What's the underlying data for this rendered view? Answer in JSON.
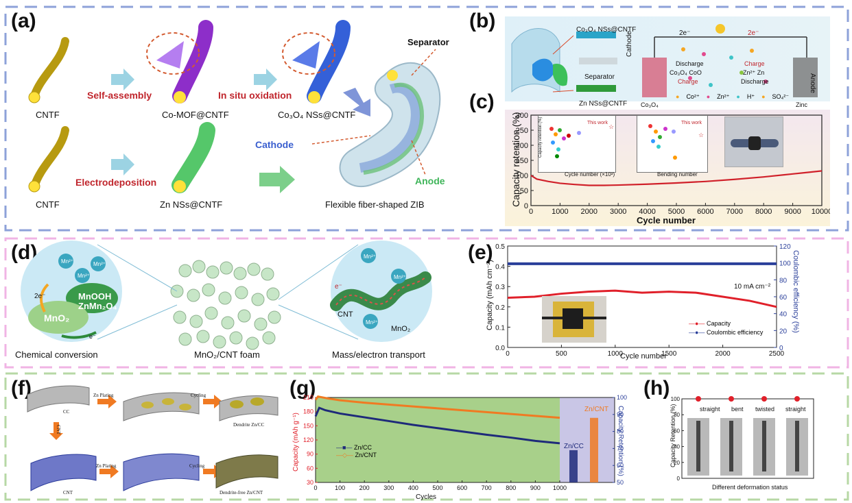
{
  "panels": {
    "a": {
      "label": "(a)",
      "cntf1": "CNTF",
      "cntf2": "CNTF",
      "step_self_assembly": "Self-assembly",
      "step_in_situ": "In situ oxidation",
      "step_electrodep": "Electrodeposition",
      "comof": "Co-MOF@CNTF",
      "co3o4": "Co₃O₄ NSs@CNTF",
      "zn": "Zn NSs@CNTF",
      "separator": "Separator",
      "cathode": "Cathode",
      "anode": "Anode",
      "zib": "Flexible fiber-shaped ZIB"
    },
    "b": {
      "label": "(b)",
      "co3o4_cntf": "Co₃O₄ NSs@CNTF",
      "separator": "Separator",
      "zn_cntf": "Zn NSs@CNTF",
      "cathode": "Cathode",
      "anode": "Anode",
      "e_left": "2e⁻",
      "e_right": "2e⁻",
      "discharge1": "Discharge",
      "charge1": "Charge",
      "co3o4_coo": "Co₃O₄  CoO",
      "charge2": "Charge",
      "discharge2": "Discharge",
      "zn2zn": "Zn²⁺  Zn",
      "co3o4_label": "Co₃O₄",
      "zinc_label": "Zinc",
      "legend": [
        "Co²⁺",
        "Zn²⁺",
        "H⁺",
        "SO₄²⁻"
      ]
    },
    "c": {
      "label": "(c)",
      "ylabel": "Capacity retention (%)",
      "xlabel": "Cycle number",
      "inset1_ylabel": "Capacity retention (%)",
      "inset1_xlabel": "Cycle number (×10³)",
      "inset1_note": "This work",
      "inset2_xlabel": "Bending number",
      "inset2_note": "This work"
    },
    "d": {
      "label": "(d)",
      "mn_ions": [
        "Mn²⁺",
        "Mn²⁺",
        "Mn²⁺"
      ],
      "e2": "2e⁻",
      "mnooh": "MnOOH",
      "znmn2o4": "ZnMn₂O₄",
      "mno2_left": "MnO₂",
      "e1": "e⁻",
      "chem_conv": "Chemical conversion",
      "foam": "MnO₂/CNT foam",
      "mass": "Mass/electron transport",
      "cnt": "CNT",
      "mno2_right": "MnO₂",
      "e_right": "e⁻",
      "mn_right": [
        "Mn²⁺",
        "Mn²⁺",
        "Mn²⁺"
      ]
    },
    "e": {
      "label": "(e)",
      "ylabel": "Capacity (mAh cm⁻²)",
      "y2label": "Coulombic efficiency (%)",
      "xlabel": "Cycle number",
      "current": "10 mA cm⁻²",
      "legend": [
        "Capacity",
        "Coulombic efficiency"
      ]
    },
    "f": {
      "label": "(f)",
      "cc": "CC",
      "zn_plating1": "Zn Plating",
      "cycling1": "Cycling",
      "dendrite": "Dendrite Zn/CC",
      "cnt_arrow": "CNT",
      "cnt": "CNT",
      "zn_plating2": "Zn Plating",
      "cycling2": "Cycling",
      "dendrite_free": "Dendrite-free Zn/CNT"
    },
    "g": {
      "label": "(g)",
      "ylabel": "Capacity (mAh g⁻¹)",
      "y2label": "Capacity Retention (%)",
      "xlabel": "Cycles",
      "legend": [
        "Zn/CC",
        "Zn/CNT"
      ],
      "bar_labels": [
        "Zn/CC",
        "Zn/CNT"
      ]
    },
    "h": {
      "label": "(h)",
      "ylabel": "Capacity Retention (%)",
      "xlabel": "Different deformation status",
      "states": [
        "straight",
        "bent",
        "twisted",
        "straight"
      ]
    }
  },
  "colors": {
    "blue_dash": "#8ea2d9",
    "pink_dash": "#f0b4e4",
    "green_dash": "#b7d8a5",
    "red_text": "#c0262d",
    "cap_red": "#e0202a",
    "ce_blue": "#2a3f9a",
    "zncc_navy": "#1e2a7a",
    "zncnt_orange": "#f07a22"
  },
  "chart_data": [
    {
      "id": "c",
      "type": "line",
      "xlabel": "Cycle number",
      "ylabel": "Capacity retention (%)",
      "xlim": [
        0,
        10000
      ],
      "ylim": [
        0,
        300
      ],
      "xticks": [
        0,
        1000,
        2000,
        3000,
        4000,
        5000,
        6000,
        7000,
        8000,
        9000,
        10000
      ],
      "yticks": [
        0,
        50,
        100,
        150,
        200,
        250,
        300
      ],
      "series": [
        {
          "x": [
            0,
            200,
            600,
            1000,
            1500,
            2000,
            2500,
            3000,
            4000,
            5000,
            6000,
            7000,
            8000,
            9000,
            9500,
            10000
          ],
          "y": [
            100,
            88,
            80,
            74,
            70,
            67,
            67,
            68,
            71,
            75,
            80,
            87,
            95,
            105,
            110,
            115
          ]
        }
      ]
    },
    {
      "id": "e",
      "type": "line",
      "xlabel": "Cycle number",
      "ylabel": "Capacity (mAh cm⁻²)",
      "y2label": "Coulombic efficiency (%)",
      "xlim": [
        0,
        2500
      ],
      "ylim": [
        0,
        0.5
      ],
      "y2lim": [
        0,
        120
      ],
      "xticks": [
        0,
        500,
        1000,
        1500,
        2000,
        2500
      ],
      "yticks": [
        0.0,
        0.1,
        0.2,
        0.3,
        0.4,
        0.5
      ],
      "y2ticks": [
        0,
        20,
        40,
        60,
        80,
        100,
        120
      ],
      "series": [
        {
          "name": "Capacity",
          "axis": "left",
          "x": [
            0,
            250,
            500,
            750,
            1000,
            1250,
            1500,
            1750,
            2000,
            2250,
            2500
          ],
          "y": [
            0.245,
            0.25,
            0.265,
            0.275,
            0.28,
            0.27,
            0.275,
            0.27,
            0.25,
            0.23,
            0.2
          ]
        },
        {
          "name": "Coulombic efficiency",
          "axis": "right",
          "x": [
            0,
            500,
            1000,
            1500,
            2000,
            2500
          ],
          "y": [
            99,
            99,
            99,
            99,
            99,
            99
          ]
        }
      ]
    },
    {
      "id": "g",
      "type": "line",
      "xlabel": "Cycles",
      "ylabel": "Capacity (mAh g⁻¹)",
      "y2label": "Capacity Retention (%)",
      "xlim": [
        0,
        1000
      ],
      "ylim": [
        30,
        210
      ],
      "y2lim": [
        50,
        100
      ],
      "xticks": [
        0,
        100,
        200,
        300,
        400,
        500,
        600,
        700,
        800,
        900,
        1000
      ],
      "yticks": [
        30,
        60,
        90,
        120,
        150,
        180,
        210
      ],
      "y2ticks": [
        50,
        60,
        70,
        80,
        90,
        100
      ],
      "series": [
        {
          "name": "Zn/CC",
          "x": [
            0,
            15,
            40,
            100,
            200,
            300,
            400,
            500,
            600,
            700,
            800,
            900,
            1000
          ],
          "y": [
            170,
            188,
            183,
            176,
            168,
            160,
            152,
            145,
            138,
            131,
            125,
            118,
            113
          ]
        },
        {
          "name": "Zn/CNT",
          "x": [
            0,
            10,
            50,
            100,
            200,
            300,
            400,
            500,
            600,
            700,
            800,
            900,
            1000
          ],
          "y": [
            205,
            212,
            208,
            204,
            199,
            195,
            191,
            187,
            183,
            179,
            175,
            171,
            167
          ]
        }
      ],
      "bars": [
        {
          "name": "Zn/CC",
          "value": 69
        },
        {
          "name": "Zn/CNT",
          "value": 88
        }
      ]
    },
    {
      "id": "h",
      "type": "bar",
      "ylabel": "Capacity Retention (%)",
      "xlabel": "Different deformation status",
      "ylim": [
        0,
        100
      ],
      "yticks": [
        0,
        20,
        40,
        60,
        80,
        100
      ],
      "categories": [
        "straight",
        "bent",
        "twisted",
        "straight"
      ],
      "values": [
        100,
        100,
        100,
        100
      ]
    }
  ]
}
